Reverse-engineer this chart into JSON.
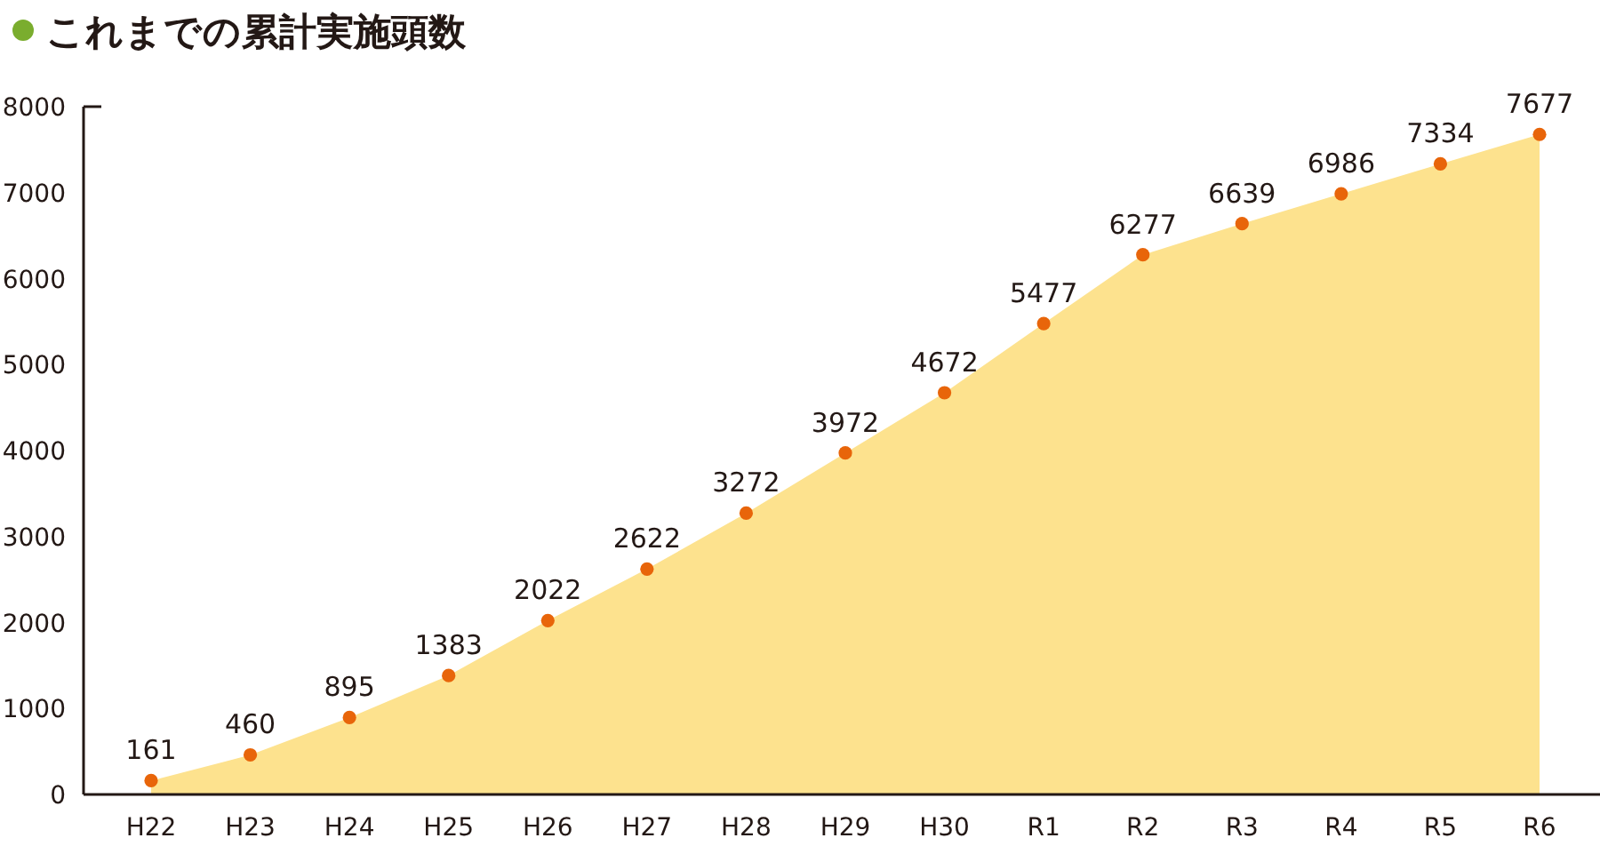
{
  "chart_data": {
    "type": "area",
    "title": "これまでの累計実施頭数",
    "categories": [
      "H22",
      "H23",
      "H24",
      "H25",
      "H26",
      "H27",
      "H28",
      "H29",
      "H30",
      "R1",
      "R2",
      "R3",
      "R4",
      "R5",
      "R6"
    ],
    "series": [
      {
        "color": "#fde28e",
        "values": [
          161,
          460,
          895,
          1383,
          2022,
          2622,
          3272,
          3972,
          4672,
          5477,
          6277,
          6639,
          6986,
          7334,
          7677
        ]
      }
    ],
    "ylim": [
      0,
      8000
    ],
    "yticks": [
      0,
      1000,
      2000,
      3000,
      4000,
      5000,
      6000,
      7000,
      8000
    ],
    "marker": "circle",
    "grid": false,
    "data_labels": true
  }
}
